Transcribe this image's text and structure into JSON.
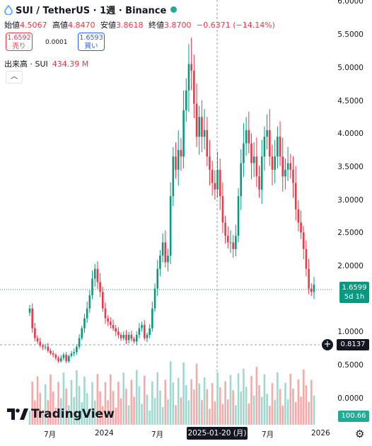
{
  "header": {
    "symbol": "SUI / TetherUS · 1週 · Binance",
    "market_status_color": "#22ab94"
  },
  "ohlc": {
    "open_label": "始値",
    "open": "4.5067",
    "high_label": "高値",
    "high": "4.8470",
    "low_label": "安値",
    "low": "3.8618",
    "close_label": "終値",
    "close": "3.8700",
    "change": "−0.6371 (−14.14%)"
  },
  "trade": {
    "sell_price": "1.6592",
    "sell_label": "売り",
    "spread": "0.0001",
    "buy_price": "1.6593",
    "buy_label": "買い"
  },
  "volume": {
    "label": "出来高 · SUI",
    "value": "434.39 M"
  },
  "collapse_icon": "chevron-up-icon",
  "price_axis": [
    "6.0000",
    "5.5000",
    "5.0000",
    "4.5000",
    "4.0000",
    "3.5000",
    "3.0000",
    "2.5000",
    "2.0000",
    "1.0000",
    "0.5000",
    "0.0000"
  ],
  "tags": {
    "last_price": "1.6599",
    "countdown": "5d 1h",
    "crosshair_price": "0.8137",
    "volume_last": "100.66 M"
  },
  "time_axis": [
    "7月",
    "2024",
    "7月",
    "7月",
    "2026"
  ],
  "time_axis_selected": "2025-01-20 (月)",
  "brand": "TradingView",
  "colors": {
    "up": "#089981",
    "down": "#f23645",
    "vol_up": "#9ed8ce",
    "vol_down": "#f7a9a7"
  },
  "chart_data": {
    "type": "candlestick",
    "interval": "1W",
    "y_axis": [
      0.6,
      6.0
    ],
    "note": "approximate weekly SUI/USDT trajectory",
    "close_path": [
      1.3,
      1.0,
      0.85,
      0.8,
      0.74,
      0.72,
      0.72,
      0.66,
      0.62,
      0.6,
      0.55,
      0.5,
      0.55,
      0.6,
      0.5,
      0.58,
      0.62,
      0.64,
      0.72,
      0.85,
      1.0,
      1.15,
      1.3,
      1.5,
      1.75,
      1.9,
      1.7,
      1.55,
      1.3,
      1.15,
      1.1,
      1.05,
      1.0,
      0.95,
      0.9,
      0.85,
      0.9,
      0.82,
      0.9,
      0.84,
      0.8,
      0.9,
      1.0,
      1.05,
      0.85,
      0.9,
      1.0,
      1.3,
      1.6,
      1.9,
      2.1,
      2.3,
      2.0,
      2.1,
      3.0,
      3.6,
      3.4,
      3.7,
      3.6,
      4.3,
      4.6,
      5.0,
      4.9,
      4.4,
      3.9,
      4.2,
      3.9,
      4.0,
      3.6,
      3.4,
      3.2,
      3.1,
      3.4,
      3.0,
      2.6,
      2.4,
      2.3,
      2.3,
      2.2,
      2.4,
      3.0,
      3.5,
      3.8,
      4.0,
      3.8,
      3.5,
      3.6,
      3.3,
      3.1,
      3.6,
      3.9,
      4.0,
      3.6,
      3.4,
      3.6,
      3.9,
      3.6,
      3.3,
      3.4,
      3.5,
      3.4,
      3.2,
      2.8,
      2.6,
      2.45,
      2.2,
      1.9,
      1.6,
      1.55,
      1.66
    ]
  }
}
